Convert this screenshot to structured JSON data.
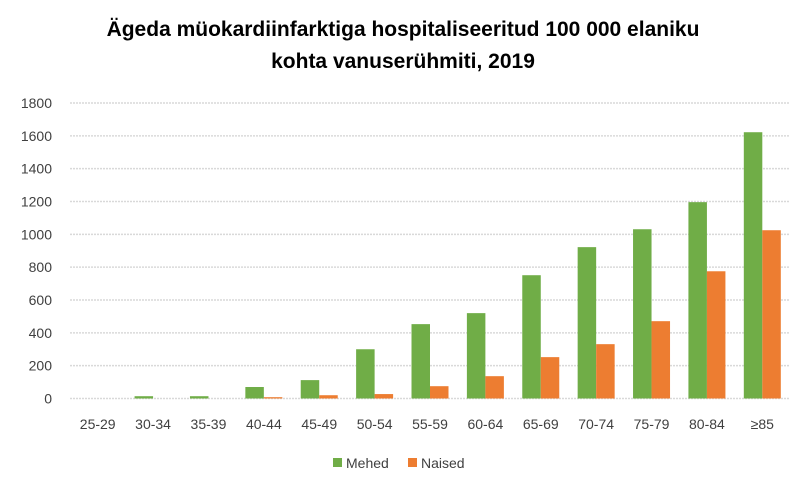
{
  "chart_data": {
    "type": "bar",
    "title_lines": [
      "Ägeda müokardiinfarktiga hospitaliseeritud 100 000 elaniku",
      "kohta vanuserühmiti, 2019"
    ],
    "xlabel": "",
    "ylabel": "",
    "ylim": [
      0,
      1800
    ],
    "yticks": [
      0,
      200,
      400,
      600,
      800,
      1000,
      1200,
      1400,
      1600,
      1800
    ],
    "grid": true,
    "legend_position": "bottom",
    "categories": [
      "25-29",
      "30-34",
      "35-39",
      "40-44",
      "45-49",
      "50-54",
      "55-59",
      "60-64",
      "65-69",
      "70-74",
      "75-79",
      "80-84",
      "≥85"
    ],
    "series": [
      {
        "name": "Mehed",
        "color": "#70AD47",
        "values": [
          0,
          14,
          14,
          70,
          112,
          300,
          453,
          520,
          751,
          922,
          1031,
          1196,
          1622
        ]
      },
      {
        "name": "Naised",
        "color": "#ED7D31",
        "values": [
          0,
          0,
          0,
          8,
          20,
          27,
          75,
          136,
          252,
          331,
          471,
          775,
          1025
        ]
      }
    ]
  }
}
